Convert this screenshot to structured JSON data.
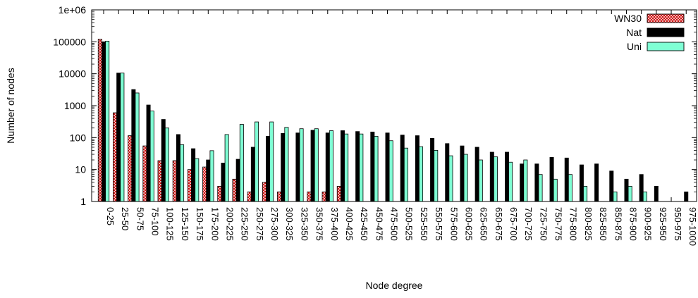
{
  "chart_data": {
    "type": "bar",
    "title": "",
    "xlabel": "Node degree",
    "ylabel": "Number of nodes",
    "y_scale": "log",
    "ylim": [
      1,
      1000000
    ],
    "y_ticks": [
      {
        "value": 1,
        "label": "1"
      },
      {
        "value": 10,
        "label": "10"
      },
      {
        "value": 100,
        "label": "100"
      },
      {
        "value": 1000,
        "label": "1000"
      },
      {
        "value": 10000,
        "label": "10000"
      },
      {
        "value": 100000,
        "label": "100000"
      },
      {
        "value": 1000000,
        "label": "1e+06"
      }
    ],
    "legend_position": "top-right",
    "grid": false,
    "categories": [
      "0-25",
      "25-50",
      "50-75",
      "75-100",
      "100-125",
      "125-150",
      "150-175",
      "175-200",
      "200-225",
      "225-250",
      "250-275",
      "275-300",
      "300-325",
      "325-350",
      "350-375",
      "375-400",
      "400-425",
      "425-450",
      "450-475",
      "475-500",
      "500-525",
      "525-550",
      "550-575",
      "575-600",
      "600-625",
      "625-650",
      "650-675",
      "675-700",
      "700-725",
      "725-750",
      "750-775",
      "775-800",
      "800-825",
      "825-850",
      "850-875",
      "875-900",
      "900-925",
      "925-950",
      "950-975",
      "975-1000"
    ],
    "series": [
      {
        "name": "WN30",
        "style": "crosshatch",
        "color": "#cc0000",
        "values": [
          120000,
          600,
          115,
          55,
          19,
          19,
          10,
          12,
          3,
          5,
          2,
          4,
          2,
          null,
          2,
          2,
          3,
          null,
          null,
          null,
          null,
          null,
          null,
          null,
          null,
          null,
          null,
          null,
          null,
          null,
          null,
          null,
          null,
          null,
          null,
          null,
          null,
          null,
          null,
          null
        ]
      },
      {
        "name": "Nat",
        "style": "solid",
        "color": "#000000",
        "values": [
          100000,
          10500,
          3200,
          1050,
          370,
          125,
          45,
          20,
          16,
          21,
          50,
          110,
          135,
          140,
          170,
          140,
          165,
          155,
          150,
          140,
          120,
          115,
          95,
          65,
          55,
          50,
          35,
          35,
          15,
          15,
          24,
          23,
          14,
          15,
          9,
          5,
          7,
          3,
          null,
          2
        ]
      },
      {
        "name": "Uni",
        "style": "solid",
        "color": "#7fffd4",
        "values": [
          105000,
          10500,
          2500,
          680,
          200,
          60,
          22,
          39,
          125,
          260,
          310,
          310,
          210,
          190,
          190,
          165,
          130,
          130,
          110,
          80,
          47,
          52,
          40,
          27,
          30,
          20,
          25,
          17,
          20,
          7,
          5,
          7,
          3,
          null,
          2,
          3,
          2,
          null,
          null,
          null
        ]
      }
    ]
  }
}
